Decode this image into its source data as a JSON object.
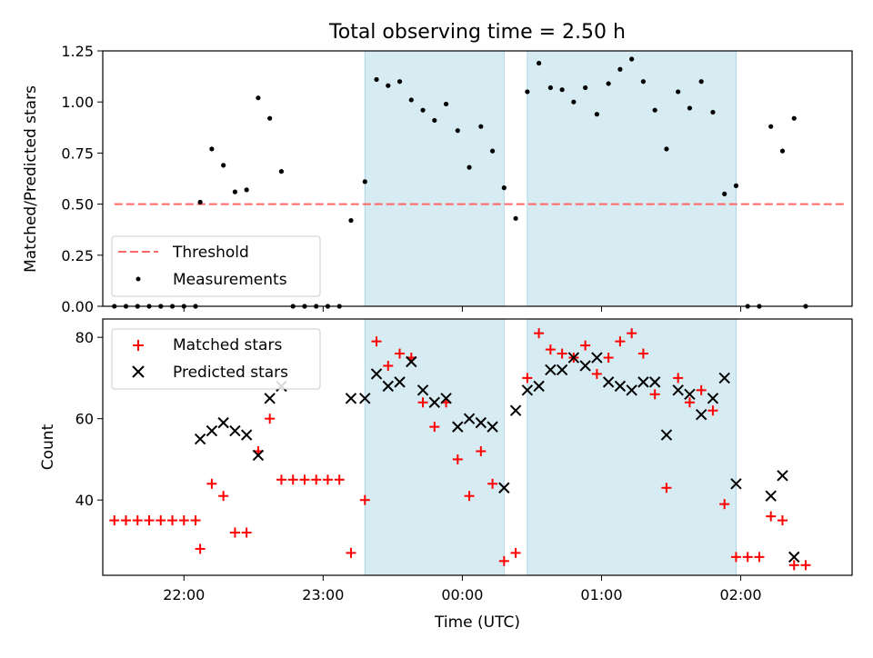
{
  "title": "Total observing time = 2.50 h",
  "colors": {
    "span": "#add8e6",
    "threshold": "#ff6666",
    "matched": "#ff0000",
    "predicted": "#000000",
    "measure": "#000000"
  },
  "chart_data": [
    {
      "type": "scatter",
      "ylabel": "Matched/Predicted stars",
      "ylim": [
        0,
        1.25
      ],
      "xlim": [
        "21:25",
        "02:48"
      ],
      "yticks": [
        "0.00",
        "0.25",
        "0.50",
        "0.75",
        "1.00",
        "1.25"
      ],
      "threshold": 0.5,
      "threshold_x": [
        "21:30",
        "02:45"
      ],
      "spans": [
        [
          "23:18",
          "00:18"
        ],
        [
          "00:28",
          "01:58"
        ]
      ],
      "legend": {
        "position": "lower-left",
        "entries": [
          "Threshold",
          "Measurements"
        ]
      },
      "series": [
        {
          "name": "Measurements",
          "points": [
            [
              "21:30",
              0.0
            ],
            [
              "21:35",
              0.0
            ],
            [
              "21:40",
              0.0
            ],
            [
              "21:45",
              0.0
            ],
            [
              "21:50",
              0.0
            ],
            [
              "21:55",
              0.0
            ],
            [
              "22:00",
              0.0
            ],
            [
              "22:05",
              0.0
            ],
            [
              "22:07",
              0.51
            ],
            [
              "22:12",
              0.77
            ],
            [
              "22:17",
              0.69
            ],
            [
              "22:22",
              0.56
            ],
            [
              "22:27",
              0.57
            ],
            [
              "22:32",
              1.02
            ],
            [
              "22:37",
              0.92
            ],
            [
              "22:42",
              0.66
            ],
            [
              "22:47",
              0.0
            ],
            [
              "22:52",
              0.0
            ],
            [
              "22:57",
              0.0
            ],
            [
              "23:02",
              0.0
            ],
            [
              "23:07",
              0.0
            ],
            [
              "23:12",
              0.42
            ],
            [
              "23:18",
              0.61
            ],
            [
              "23:23",
              1.11
            ],
            [
              "23:28",
              1.08
            ],
            [
              "23:33",
              1.1
            ],
            [
              "23:38",
              1.01
            ],
            [
              "23:43",
              0.96
            ],
            [
              "23:48",
              0.91
            ],
            [
              "23:53",
              0.99
            ],
            [
              "23:58",
              0.86
            ],
            [
              "00:03",
              0.68
            ],
            [
              "00:08",
              0.88
            ],
            [
              "00:13",
              0.76
            ],
            [
              "00:18",
              0.58
            ],
            [
              "00:23",
              0.43
            ],
            [
              "00:28",
              1.05
            ],
            [
              "00:33",
              1.19
            ],
            [
              "00:38",
              1.07
            ],
            [
              "00:43",
              1.06
            ],
            [
              "00:48",
              1.0
            ],
            [
              "00:53",
              1.07
            ],
            [
              "00:58",
              0.94
            ],
            [
              "01:03",
              1.09
            ],
            [
              "01:08",
              1.16
            ],
            [
              "01:13",
              1.21
            ],
            [
              "01:18",
              1.1
            ],
            [
              "01:23",
              0.96
            ],
            [
              "01:28",
              0.77
            ],
            [
              "01:33",
              1.05
            ],
            [
              "01:38",
              0.97
            ],
            [
              "01:43",
              1.1
            ],
            [
              "01:48",
              0.95
            ],
            [
              "01:53",
              0.55
            ],
            [
              "01:58",
              0.59
            ],
            [
              "02:03",
              0.0
            ],
            [
              "02:08",
              0.0
            ],
            [
              "02:13",
              0.88
            ],
            [
              "02:18",
              0.76
            ],
            [
              "02:23",
              0.92
            ],
            [
              "02:28",
              0.0
            ]
          ]
        }
      ]
    },
    {
      "type": "scatter",
      "ylabel": "Count",
      "xlabel": "Time (UTC)",
      "ylim": [
        21.5,
        84.5
      ],
      "xlim": [
        "21:25",
        "02:48"
      ],
      "yticks": [
        "40",
        "60",
        "80"
      ],
      "xticks": [
        "22:00",
        "23:00",
        "00:00",
        "01:00",
        "02:00"
      ],
      "spans": [
        [
          "23:18",
          "00:18"
        ],
        [
          "00:28",
          "01:58"
        ]
      ],
      "legend": {
        "position": "upper-left",
        "entries": [
          "Matched stars",
          "Predicted stars"
        ]
      },
      "series": [
        {
          "name": "Matched stars",
          "marker": "+",
          "points": [
            [
              "21:30",
              35
            ],
            [
              "21:35",
              35
            ],
            [
              "21:40",
              35
            ],
            [
              "21:45",
              35
            ],
            [
              "21:50",
              35
            ],
            [
              "21:55",
              35
            ],
            [
              "22:00",
              35
            ],
            [
              "22:05",
              35
            ],
            [
              "22:07",
              28
            ],
            [
              "22:12",
              44
            ],
            [
              "22:17",
              41
            ],
            [
              "22:22",
              32
            ],
            [
              "22:27",
              32
            ],
            [
              "22:32",
              52
            ],
            [
              "22:37",
              60
            ],
            [
              "22:42",
              45
            ],
            [
              "22:47",
              45
            ],
            [
              "22:52",
              45
            ],
            [
              "22:57",
              45
            ],
            [
              "23:02",
              45
            ],
            [
              "23:07",
              45
            ],
            [
              "23:12",
              27
            ],
            [
              "23:18",
              40
            ],
            [
              "23:23",
              79
            ],
            [
              "23:28",
              73
            ],
            [
              "23:33",
              76
            ],
            [
              "23:38",
              75
            ],
            [
              "23:43",
              64
            ],
            [
              "23:48",
              58
            ],
            [
              "23:53",
              64
            ],
            [
              "23:58",
              50
            ],
            [
              "00:03",
              41
            ],
            [
              "00:08",
              52
            ],
            [
              "00:13",
              44
            ],
            [
              "00:18",
              25
            ],
            [
              "00:23",
              27
            ],
            [
              "00:28",
              70
            ],
            [
              "00:33",
              81
            ],
            [
              "00:38",
              77
            ],
            [
              "00:43",
              76
            ],
            [
              "00:48",
              75
            ],
            [
              "00:53",
              78
            ],
            [
              "00:58",
              71
            ],
            [
              "01:03",
              75
            ],
            [
              "01:08",
              79
            ],
            [
              "01:13",
              81
            ],
            [
              "01:18",
              76
            ],
            [
              "01:23",
              66
            ],
            [
              "01:28",
              43
            ],
            [
              "01:33",
              70
            ],
            [
              "01:38",
              64
            ],
            [
              "01:43",
              67
            ],
            [
              "01:48",
              62
            ],
            [
              "01:53",
              39
            ],
            [
              "01:58",
              26
            ],
            [
              "02:03",
              26
            ],
            [
              "02:08",
              26
            ],
            [
              "02:13",
              36
            ],
            [
              "02:18",
              35
            ],
            [
              "02:23",
              24
            ],
            [
              "02:28",
              24
            ]
          ]
        },
        {
          "name": "Predicted stars",
          "marker": "x",
          "points": [
            [
              "22:07",
              55
            ],
            [
              "22:12",
              57
            ],
            [
              "22:17",
              59
            ],
            [
              "22:22",
              57
            ],
            [
              "22:27",
              56
            ],
            [
              "22:32",
              51
            ],
            [
              "22:37",
              65
            ],
            [
              "22:42",
              68
            ],
            [
              "23:12",
              65
            ],
            [
              "23:18",
              65
            ],
            [
              "23:23",
              71
            ],
            [
              "23:28",
              68
            ],
            [
              "23:33",
              69
            ],
            [
              "23:38",
              74
            ],
            [
              "23:43",
              67
            ],
            [
              "23:48",
              64
            ],
            [
              "23:53",
              65
            ],
            [
              "23:58",
              58
            ],
            [
              "00:03",
              60
            ],
            [
              "00:08",
              59
            ],
            [
              "00:13",
              58
            ],
            [
              "00:18",
              43
            ],
            [
              "00:23",
              62
            ],
            [
              "00:28",
              67
            ],
            [
              "00:33",
              68
            ],
            [
              "00:38",
              72
            ],
            [
              "00:43",
              72
            ],
            [
              "00:48",
              75
            ],
            [
              "00:53",
              73
            ],
            [
              "00:58",
              75
            ],
            [
              "01:03",
              69
            ],
            [
              "01:08",
              68
            ],
            [
              "01:13",
              67
            ],
            [
              "01:18",
              69
            ],
            [
              "01:23",
              69
            ],
            [
              "01:28",
              56
            ],
            [
              "01:33",
              67
            ],
            [
              "01:38",
              66
            ],
            [
              "01:43",
              61
            ],
            [
              "01:48",
              65
            ],
            [
              "01:53",
              70
            ],
            [
              "01:58",
              44
            ],
            [
              "02:13",
              41
            ],
            [
              "02:18",
              46
            ],
            [
              "02:23",
              26
            ]
          ]
        }
      ]
    }
  ]
}
